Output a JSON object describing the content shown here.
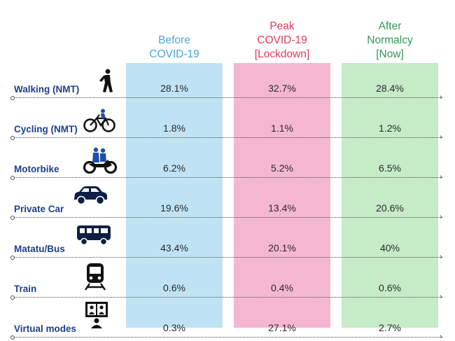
{
  "chart_data": {
    "type": "table",
    "title": "",
    "columns": [
      {
        "label_lines": [
          "Before",
          "COVID-19"
        ],
        "color": "#4aa7dc",
        "bg": "#bfe3f4"
      },
      {
        "label_lines": [
          "Peak",
          "COVID-19",
          "[Lockdown]"
        ],
        "color": "#e23c5a",
        "bg": "#f5b6d2"
      },
      {
        "label_lines": [
          "After",
          "Normalcy",
          "[Now]"
        ],
        "color": "#2f9a5b",
        "bg": "#c5ebc7"
      }
    ],
    "rows": [
      {
        "label": "Walking (NMT)",
        "icon": "walking-person-icon",
        "values": [
          "28.1%",
          "32.7%",
          "28.4%"
        ]
      },
      {
        "label": "Cycling (NMT)",
        "icon": "bicycle-icon",
        "values": [
          "1.8%",
          "1.1%",
          "1.2%"
        ]
      },
      {
        "label": "Motorbike",
        "icon": "motorbike-icon",
        "values": [
          "6.2%",
          "5.2%",
          "6.5%"
        ]
      },
      {
        "label": "Private Car",
        "icon": "car-icon",
        "values": [
          "19.6%",
          "13.4%",
          "20.6%"
        ]
      },
      {
        "label": "Matatu/Bus",
        "icon": "bus-icon",
        "values": [
          "43.4%",
          "20.1%",
          "40%"
        ]
      },
      {
        "label": "Train",
        "icon": "train-icon",
        "values": [
          "0.6%",
          "0.4%",
          "0.6%"
        ]
      },
      {
        "label": "Virtual modes",
        "icon": "video-call-icon",
        "values": [
          "0.3%",
          "27.1%",
          "2.7%"
        ]
      }
    ]
  }
}
